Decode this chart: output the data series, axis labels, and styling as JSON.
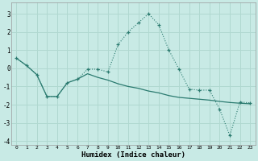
{
  "xlabel": "Humidex (Indice chaleur)",
  "background_color": "#c8eae5",
  "grid_color": "#b0d8d0",
  "line_color": "#2a7a6f",
  "xlim": [
    -0.5,
    23.5
  ],
  "ylim": [
    -4.2,
    3.6
  ],
  "yticks": [
    -4,
    -3,
    -2,
    -1,
    0,
    1,
    2,
    3
  ],
  "xticks": [
    0,
    1,
    2,
    3,
    4,
    5,
    6,
    7,
    8,
    9,
    10,
    11,
    12,
    13,
    14,
    15,
    16,
    17,
    18,
    19,
    20,
    21,
    22,
    23
  ],
  "line1_x": [
    0,
    1,
    2,
    3,
    4,
    5,
    6,
    7,
    8,
    9,
    10,
    11,
    12,
    13,
    14,
    15,
    16,
    17,
    18,
    19,
    20,
    21,
    22,
    23
  ],
  "line1_y": [
    0.55,
    0.15,
    -0.35,
    -1.55,
    -1.55,
    -0.8,
    -0.6,
    -0.05,
    -0.05,
    -0.2,
    1.3,
    2.0,
    2.5,
    3.0,
    2.4,
    1.0,
    -0.05,
    -1.15,
    -1.2,
    -1.2,
    -2.25,
    -3.7,
    -1.85,
    -1.9
  ],
  "line2_x": [
    0,
    1,
    2,
    3,
    4,
    5,
    6,
    7,
    8,
    9,
    10,
    11,
    12,
    13,
    14,
    15,
    16,
    17,
    18,
    19,
    20,
    21,
    22,
    23
  ],
  "line2_y": [
    0.55,
    0.15,
    -0.35,
    -1.55,
    -1.55,
    -0.8,
    -0.6,
    -0.3,
    -0.5,
    -0.65,
    -0.85,
    -1.0,
    -1.1,
    -1.25,
    -1.35,
    -1.5,
    -1.6,
    -1.65,
    -1.7,
    -1.75,
    -1.82,
    -1.88,
    -1.92,
    -1.95
  ]
}
